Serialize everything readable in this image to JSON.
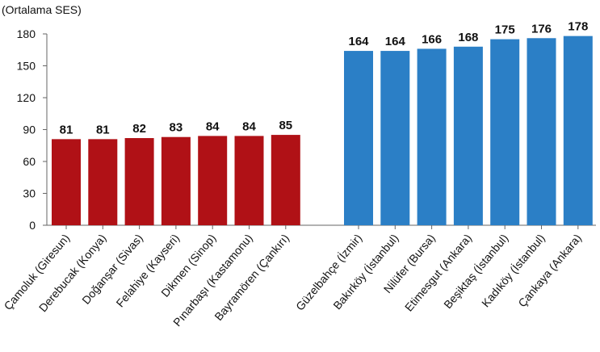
{
  "chart_data": {
    "type": "bar",
    "ylabel": "(Ortalama SES)",
    "ylim": [
      0,
      180
    ],
    "yticks": [
      0,
      30,
      60,
      90,
      120,
      150,
      180
    ],
    "grid": false,
    "groups": [
      {
        "color": "#b01116",
        "categories": [
          "Çamoluk (Giresun)",
          "Derebucak (Konya)",
          "Doğanşar (Sivas)",
          "Felahiye (Kayseri)",
          "Dikmen (Sinop)",
          "Pınarbaşı (Kastamonu)",
          "Bayramören (Çankırı)"
        ],
        "values": [
          81,
          81,
          82,
          83,
          84,
          84,
          85
        ]
      },
      {
        "color": "#2b7fc6",
        "categories": [
          "Güzelbahçe (İzmir)",
          "Bakırköy (İstanbul)",
          "Nilüfer (Bursa)",
          "Etimesgut (Ankara)",
          "Beşiktaş (İstanbul)",
          "Kadıköy (İstanbul)",
          "Çankaya (Ankara)"
        ],
        "values": [
          164,
          164,
          166,
          168,
          175,
          176,
          178
        ]
      }
    ]
  }
}
